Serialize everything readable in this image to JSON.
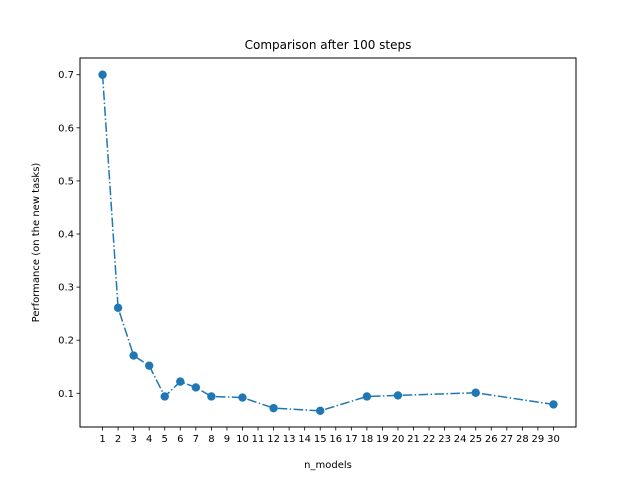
{
  "chart_data": {
    "type": "line",
    "title": "Comparison after 100 steps",
    "xlabel": "n_models",
    "ylabel": "Performance (on the new tasks)",
    "xticks": [
      1,
      2,
      3,
      4,
      5,
      6,
      7,
      8,
      9,
      10,
      11,
      12,
      13,
      14,
      15,
      16,
      17,
      18,
      19,
      20,
      21,
      22,
      23,
      24,
      25,
      26,
      27,
      28,
      29,
      30
    ],
    "yticks": [
      0.1,
      0.2,
      0.3,
      0.4,
      0.5,
      0.6,
      0.7
    ],
    "xlim": [
      -0.45,
      31.45
    ],
    "ylim": [
      0.0365,
      0.7315
    ],
    "line_style": "dash-dot",
    "marker": "circle",
    "color": "#1f77b4",
    "grid": false,
    "series": [
      {
        "x": [
          1,
          2,
          3,
          4,
          5,
          6,
          7,
          8,
          10,
          12,
          15,
          18,
          20,
          25,
          30
        ],
        "y": [
          0.7,
          0.261,
          0.171,
          0.152,
          0.094,
          0.122,
          0.111,
          0.094,
          0.092,
          0.072,
          0.067,
          0.094,
          0.096,
          0.101,
          0.079
        ]
      }
    ]
  }
}
